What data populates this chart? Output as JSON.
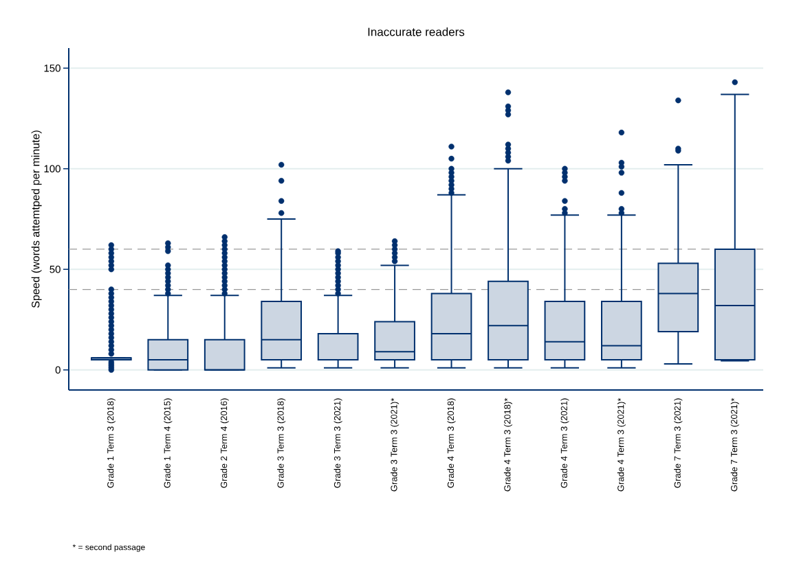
{
  "chart_data": {
    "type": "box",
    "title": "Inaccurate readers",
    "ylabel": "Speed (words attemtped per minute)",
    "categories": [
      "Grade 1 Term 3 (2018)",
      "Grade 1 Term 4 (2015)",
      "Grade 2 Term 4 (2016)",
      "Grade 3 Term 3 (2018)",
      "Grade 3 Term 3 (2021)",
      "Grade 3 Term 3 (2021)*",
      "Grade 4 Term 3 (2018)",
      "Grade 4 Term 3 (2018)*",
      "Grade 4 Term 3 (2021)",
      "Grade 4 Term 3 (2021)*",
      "Grade 7 Term 3 (2021)",
      "Grade 7 Term 3 (2021)*"
    ],
    "series": [
      {
        "color": "#00306e",
        "boxes": [
          {
            "low": 5,
            "q1": 5,
            "median": 6,
            "q3": 6,
            "high": 6,
            "outliers": [
              0,
              1,
              2,
              3,
              4,
              8,
              10,
              12,
              14,
              16,
              18,
              20,
              22,
              24,
              26,
              28,
              30,
              32,
              34,
              36,
              38,
              40,
              50,
              52,
              54,
              56,
              58,
              60,
              62
            ]
          },
          {
            "low": 0,
            "q1": 0,
            "median": 5,
            "q3": 15,
            "high": 37,
            "outliers": [
              38,
              40,
              42,
              44,
              46,
              48,
              50,
              52,
              59,
              61,
              63
            ]
          },
          {
            "low": 0,
            "q1": 0,
            "median": 0,
            "q3": 15,
            "high": 37,
            "outliers": [
              38,
              40,
              42,
              44,
              46,
              48,
              50,
              52,
              54,
              56,
              58,
              60,
              62,
              64,
              66
            ]
          },
          {
            "low": 1,
            "q1": 5,
            "median": 15,
            "q3": 34,
            "high": 75,
            "outliers": [
              78,
              84,
              94,
              102
            ]
          },
          {
            "low": 1,
            "q1": 5,
            "median": 5,
            "q3": 18,
            "high": 37,
            "outliers": [
              38,
              40,
              42,
              44,
              46,
              48,
              50,
              52,
              54,
              56,
              58,
              59
            ]
          },
          {
            "low": 1,
            "q1": 5,
            "median": 9,
            "q3": 24,
            "high": 52,
            "outliers": [
              54,
              56,
              58,
              60,
              62,
              64
            ]
          },
          {
            "low": 1,
            "q1": 5,
            "median": 18,
            "q3": 38,
            "high": 87,
            "outliers": [
              88,
              90,
              92,
              94,
              96,
              98,
              100,
              105,
              111
            ]
          },
          {
            "low": 1,
            "q1": 5,
            "median": 22,
            "q3": 44,
            "high": 100,
            "outliers": [
              104,
              106,
              108,
              110,
              112,
              127,
              129,
              131,
              138
            ]
          },
          {
            "low": 1,
            "q1": 5,
            "median": 14,
            "q3": 34,
            "high": 77,
            "outliers": [
              78,
              80,
              84,
              94,
              96,
              98,
              100
            ]
          },
          {
            "low": 1,
            "q1": 5,
            "median": 12,
            "q3": 34,
            "high": 77,
            "outliers": [
              78,
              80,
              88,
              98,
              101,
              103,
              118
            ]
          },
          {
            "low": 3,
            "q1": 19,
            "median": 38,
            "q3": 53,
            "high": 102,
            "outliers": [
              109,
              110,
              134
            ]
          },
          {
            "low": 4.5,
            "q1": 5,
            "median": 32,
            "q3": 60,
            "high": 137,
            "outliers": [
              143
            ]
          }
        ]
      }
    ],
    "ylim": [
      -10,
      160
    ],
    "yticks": [
      0,
      50,
      100,
      150
    ],
    "grid": "y",
    "ref_lines": [
      {
        "axis": "y",
        "value": 40,
        "color": "#999999",
        "line_style": "dashed"
      },
      {
        "axis": "y",
        "value": 60,
        "color": "#999999",
        "line_style": "dashed"
      }
    ],
    "annotations": [
      "* = second passage"
    ]
  }
}
